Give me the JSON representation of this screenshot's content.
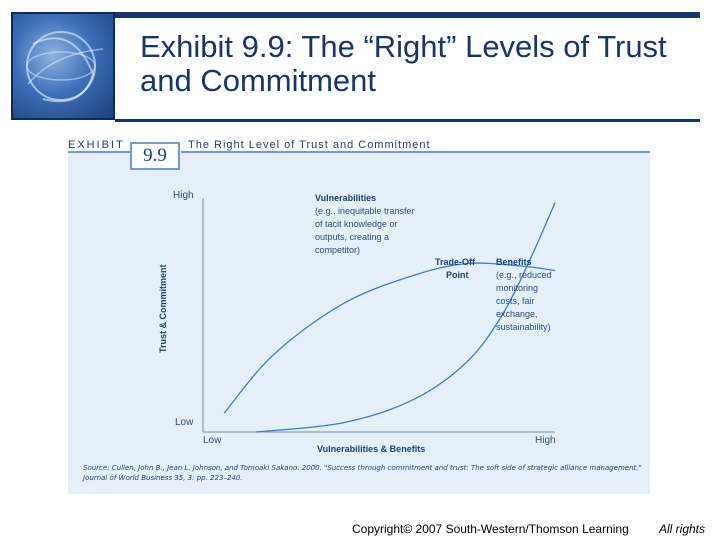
{
  "slide": {
    "title": "Exhibit 9.9: The “Right” Levels of Trust and Commitment",
    "copyright": "Copyright© 2007 South-Western/Thomson Learning",
    "rights": "All rights"
  },
  "exhibit": {
    "word": "EXHIBIT",
    "number": "9.9",
    "title": "The Right Level of Trust and Commitment",
    "source": "Source: Cullen, John B., Jean L. Johnson, and Tomoaki Sakano. 2000. \"Success through commitment and trust: The soft side of strategic alliance management.\" Journal of World Business 35, 3: pp. 223–240."
  },
  "colors": {
    "navy": "#16366b",
    "curve": "#3b7fc4",
    "panel": "#e4eff8",
    "text": "#1a3f7a"
  },
  "chart_data": {
    "type": "line",
    "xlabel": "Vulnerabilities & Benefits",
    "ylabel": "Trust & Commitment",
    "x_ticks": {
      "low": "Low",
      "high": "High"
    },
    "y_ticks": {
      "low": "Low",
      "high": "High"
    },
    "xlim": [
      0,
      1
    ],
    "ylim": [
      0,
      1
    ],
    "series": [
      {
        "name": "Vulnerabilities",
        "note": "(e.g., inequitable transfer of tacit knowledge or outputs, creating a competitor)",
        "x": [
          0.15,
          0.4,
          0.6,
          0.75,
          0.85,
          0.93,
          1.0
        ],
        "y": [
          0.0,
          0.04,
          0.14,
          0.3,
          0.5,
          0.74,
          0.98
        ]
      },
      {
        "name": "Benefits",
        "note": "(e.g., reduced monitoring costs, fair exchange, sustainability)",
        "x": [
          0.06,
          0.2,
          0.4,
          0.6,
          0.75,
          0.9,
          1.0
        ],
        "y": [
          0.08,
          0.33,
          0.55,
          0.67,
          0.72,
          0.71,
          0.69
        ]
      }
    ],
    "annotations": [
      {
        "text": "Trade-Off Point",
        "x": 0.8,
        "y": 0.73
      }
    ]
  }
}
